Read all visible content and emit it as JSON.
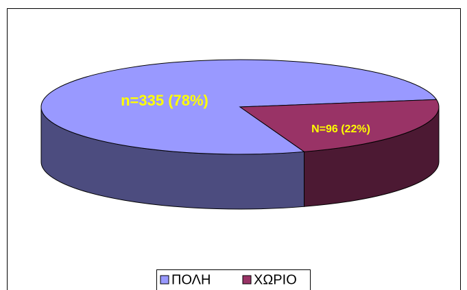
{
  "chart_data": {
    "type": "pie",
    "categories": [
      "ΠΟΛΗ",
      "ΧΩΡΙΟ"
    ],
    "values": [
      335,
      96
    ],
    "value_labels": [
      "n=335 (78%)",
      "N=96 (22%)"
    ],
    "colors": [
      "#9999ff",
      "#993366"
    ]
  }
}
